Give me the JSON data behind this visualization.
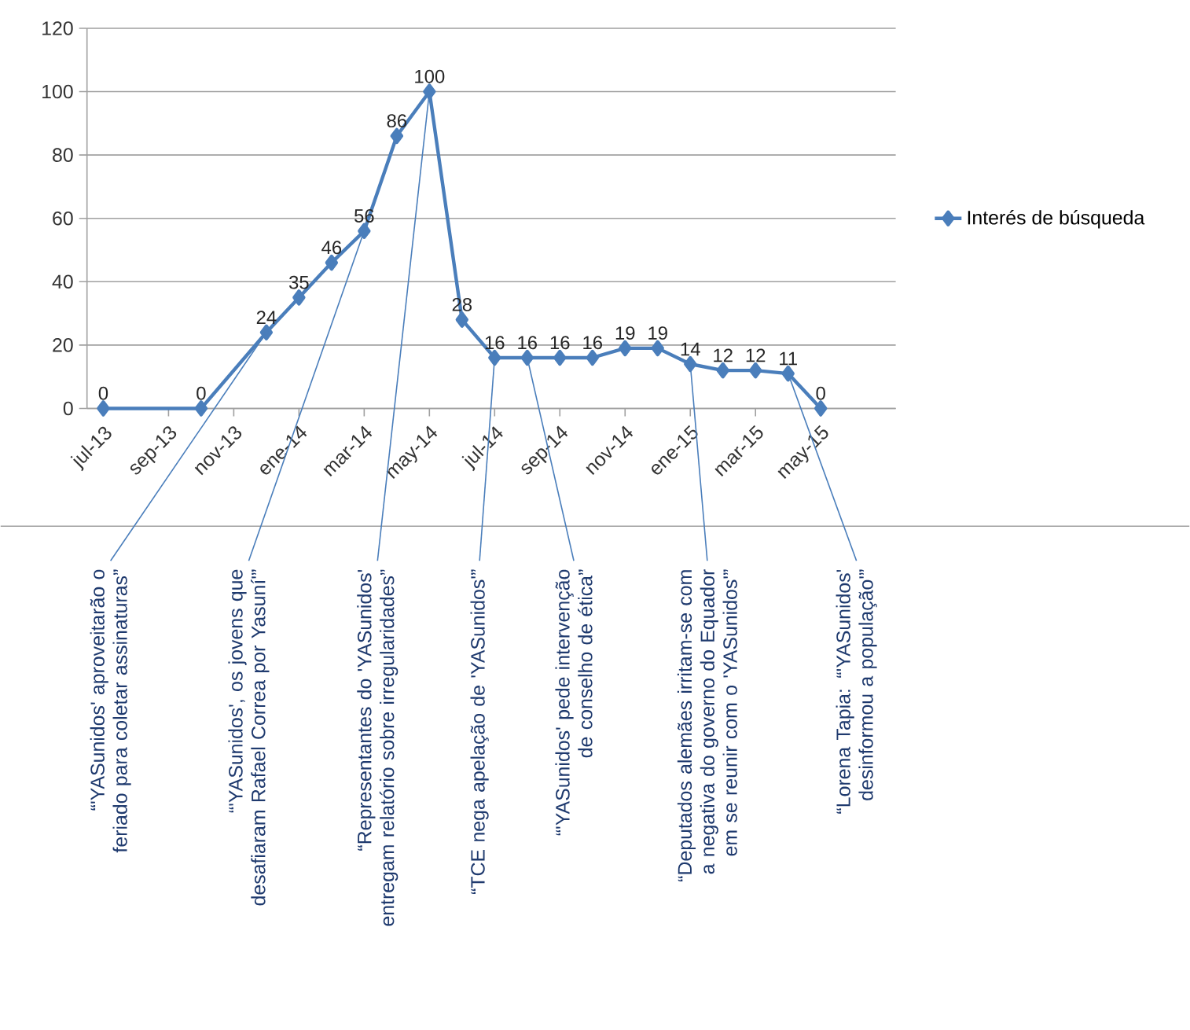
{
  "chart_data": {
    "type": "line",
    "marker": "diamond",
    "line_style": "solid",
    "grid": "y",
    "legend": "right",
    "data_labels": true,
    "x": [
      "2013-07",
      "2013-10",
      "2013-12",
      "2014-01",
      "2014-02",
      "2014-03",
      "2014-04",
      "2014-05",
      "2014-06",
      "2014-07",
      "2014-08",
      "2014-09",
      "2014-10",
      "2014-11",
      "2014-12",
      "2015-01",
      "2015-02",
      "2015-03",
      "2015-04",
      "2015-05"
    ],
    "series": [
      {
        "name": "Interés de búsqueda",
        "color": "#4a7ebb",
        "values": [
          0,
          0,
          24,
          35,
          46,
          56,
          86,
          100,
          28,
          16,
          16,
          16,
          16,
          19,
          19,
          14,
          12,
          12,
          11,
          0
        ]
      }
    ],
    "xlim": [
      "2013-06-16",
      "2015-07-10"
    ],
    "xticks": [
      {
        "value": "2013-07",
        "label": "jul-13"
      },
      {
        "value": "2013-09",
        "label": "sep-13"
      },
      {
        "value": "2013-11",
        "label": "nov-13"
      },
      {
        "value": "2014-01",
        "label": "ene-14"
      },
      {
        "value": "2014-03",
        "label": "mar-14"
      },
      {
        "value": "2014-05",
        "label": "may-14"
      },
      {
        "value": "2014-07",
        "label": "jul-14"
      },
      {
        "value": "2014-09",
        "label": "sep-14"
      },
      {
        "value": "2014-11",
        "label": "nov-14"
      },
      {
        "value": "2015-01",
        "label": "ene-15"
      },
      {
        "value": "2015-03",
        "label": "mar-15"
      },
      {
        "value": "2015-05",
        "label": "may-15"
      }
    ],
    "ylim": [
      0,
      120
    ],
    "yticks": [
      0,
      20,
      40,
      60,
      80,
      100,
      120
    ],
    "annotations": [
      {
        "text": "“'YASunidos' aproveitarão o feriado para coletar assinaturas”",
        "x": "2013-12",
        "y": 24
      },
      {
        "text": "“'YASunidos', os jovens que desafiaram Rafael Correa por Yasuní'”",
        "x": "2014-03",
        "y": 56
      },
      {
        "text": "“Representantes do 'YASunidos' entregam relatório sobre irregularidades”",
        "x": "2014-05",
        "y": 100
      },
      {
        "text": "“TCE nega apelação de 'YASunidos'”",
        "x": "2014-07",
        "y": 16
      },
      {
        "text": "“'YASunidos' pede intervenção de conselho de ética”",
        "x": "2014-08",
        "y": 16
      },
      {
        "text": "“Deputados alemães irritam-se com a negativa do governo do Equador em se reunir com o 'YASunidos'”",
        "x": "2015-01",
        "y": 14
      },
      {
        "text": "“Lorena Tapia: “'YASunidos' desinformou a população'”",
        "x": "2015-04",
        "y": 11
      }
    ]
  }
}
